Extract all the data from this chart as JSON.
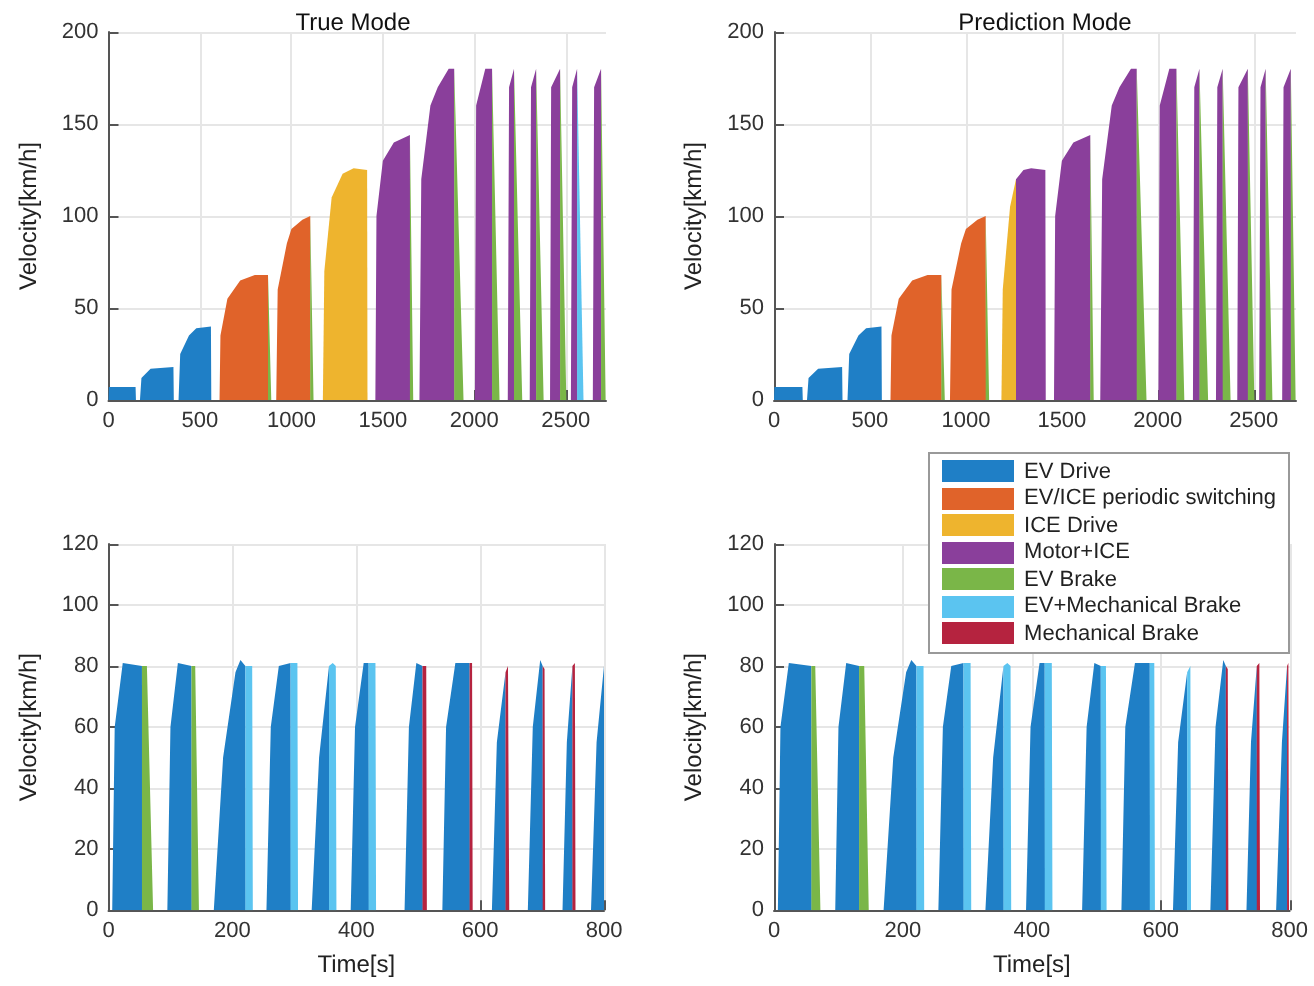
{
  "chart_data": [
    {
      "type": "area",
      "title": "True Mode",
      "ylabel": "Velocity[km/h]",
      "xlim": [
        0,
        2720
      ],
      "xticks": [
        0,
        500,
        1000,
        1500,
        2000,
        2500
      ],
      "ylim": [
        0,
        200
      ],
      "yticks": [
        0,
        50,
        100,
        150,
        200
      ],
      "grid": true,
      "legend": "bottom right",
      "series": [
        {
          "name": "EV Drive",
          "color": "#1f7fc6",
          "x": [
            0,
            2,
            148,
            150,
            160,
            172,
            180,
            230,
            355,
            357,
            370,
            383,
            392,
            440,
            480,
            560,
            562
          ],
          "values": [
            0,
            7,
            7,
            0,
            null,
            0,
            12,
            17,
            18,
            0,
            null,
            0,
            25,
            35,
            39,
            40,
            0
          ]
        },
        {
          "name": "EV/ICE periodic switching",
          "color": "#e0632a",
          "x": [
            607,
            612,
            650,
            720,
            800,
            872,
            874,
            895,
            917,
            925,
            975,
            1000,
            1060,
            1103,
            1105
          ],
          "values": [
            0,
            35,
            55,
            65,
            68,
            68,
            0,
            null,
            0,
            60,
            85,
            93,
            98,
            100,
            0
          ]
        },
        {
          "name": "ICE Drive",
          "color": "#eeb42e",
          "x": [
            1172,
            1180,
            1220,
            1280,
            1340,
            1414,
            1416
          ],
          "values": [
            0,
            70,
            110,
            123,
            126,
            125,
            0
          ]
        },
        {
          "name": "Motor+ICE",
          "color": "#8a3f9b",
          "x": [
            1459,
            1465,
            1500,
            1560,
            1648,
            1650,
            1680,
            1700,
            1710,
            1760,
            1800,
            1860,
            1890,
            1892,
            1950,
            2003,
            2010,
            2060,
            2097,
            2099,
            2150,
            2183,
            2190,
            2217,
            2219,
            2280,
            2303,
            2310,
            2338,
            2340,
            2400,
            2414,
            2420,
            2469,
            2471,
            2510,
            2528,
            2535,
            2562,
            2564,
            2630,
            2648,
            2655,
            2693,
            2695
          ],
          "values": [
            0,
            100,
            130,
            140,
            144,
            0,
            null,
            0,
            120,
            160,
            170,
            180,
            180,
            0,
            null,
            0,
            160,
            180,
            180,
            0,
            null,
            0,
            170,
            180,
            0,
            null,
            0,
            170,
            180,
            0,
            null,
            0,
            170,
            180,
            0,
            null,
            0,
            170,
            180,
            0,
            null,
            0,
            170,
            180,
            0
          ]
        },
        {
          "name": "EV Brake",
          "color": "#7ab648",
          "x": [
            872,
            890,
            895,
            1103,
            1121,
            1125,
            1648,
            1666,
            1670,
            1890,
            1941,
            1945,
            2097,
            2138,
            2140,
            2217,
            2262,
            2265,
            2338,
            2379,
            2385,
            2469,
            2503,
            2510,
            2693,
            2718
          ],
          "values": [
            68,
            0,
            null,
            100,
            0,
            null,
            144,
            0,
            null,
            180,
            0,
            null,
            180,
            0,
            null,
            180,
            0,
            null,
            180,
            0,
            null,
            180,
            0,
            null,
            180,
            0
          ]
        },
        {
          "name": "EV+Mechanical Brake",
          "color": "#5bc4f0",
          "x": [
            2562,
            2597
          ],
          "values": [
            180,
            0
          ]
        }
      ]
    },
    {
      "type": "area",
      "title": "Prediction Mode",
      "ylabel": "Velocity[km/h]",
      "xlim": [
        0,
        2720
      ],
      "xticks": [
        0,
        500,
        1000,
        1500,
        2000,
        2500
      ],
      "ylim": [
        0,
        200
      ],
      "yticks": [
        0,
        50,
        100,
        150,
        200
      ],
      "grid": true,
      "legend": "bottom",
      "series": [
        {
          "name": "EV Drive",
          "color": "#1f7fc6",
          "x": [
            0,
            2,
            148,
            150,
            160,
            172,
            180,
            230,
            355,
            357,
            370,
            383,
            392,
            440,
            480,
            560,
            562
          ],
          "values": [
            0,
            7,
            7,
            0,
            null,
            0,
            12,
            17,
            18,
            0,
            null,
            0,
            25,
            35,
            39,
            40,
            0
          ]
        },
        {
          "name": "EV/ICE periodic switching",
          "color": "#e0632a",
          "x": [
            607,
            612,
            650,
            720,
            800,
            872,
            874,
            895,
            917,
            925,
            975,
            1000,
            1060,
            1103,
            1105
          ],
          "values": [
            0,
            35,
            55,
            65,
            68,
            68,
            0,
            null,
            0,
            60,
            85,
            93,
            98,
            100,
            0
          ]
        },
        {
          "name": "ICE Drive",
          "color": "#eeb42e",
          "x": [
            1185,
            1192,
            1230,
            1261
          ],
          "values": [
            0,
            60,
            105,
            120
          ]
        },
        {
          "name": "Motor+ICE",
          "color": "#8a3f9b",
          "x": [
            1261,
            1300,
            1340,
            1414,
            1416,
            1440,
            1459,
            1465,
            1500,
            1560,
            1648,
            1650,
            1680,
            1700,
            1710,
            1760,
            1800,
            1860,
            1890,
            1892,
            1950,
            2003,
            2010,
            2060,
            2097,
            2099,
            2150,
            2183,
            2190,
            2217,
            2219,
            2280,
            2303,
            2310,
            2338,
            2340,
            2400,
            2414,
            2420,
            2469,
            2471,
            2510,
            2528,
            2535,
            2562,
            2564,
            2630,
            2648,
            2655,
            2693,
            2695
          ],
          "values": [
            120,
            125,
            126,
            125,
            0,
            null,
            0,
            100,
            130,
            140,
            144,
            0,
            null,
            0,
            120,
            160,
            170,
            180,
            180,
            0,
            null,
            0,
            160,
            180,
            180,
            0,
            null,
            0,
            170,
            180,
            0,
            null,
            0,
            170,
            180,
            0,
            null,
            0,
            170,
            180,
            0,
            null,
            0,
            170,
            180,
            0,
            null,
            0,
            170,
            180,
            0
          ]
        },
        {
          "name": "EV Brake",
          "color": "#7ab648",
          "x": [
            872,
            890,
            895,
            1103,
            1121,
            1125,
            1648,
            1666,
            1670,
            1890,
            1941,
            1945,
            2097,
            2138,
            2140,
            2217,
            2262,
            2265,
            2338,
            2379,
            2385,
            2469,
            2503,
            2510,
            2562,
            2597,
            2600,
            2693,
            2718
          ],
          "values": [
            68,
            0,
            null,
            100,
            0,
            null,
            144,
            0,
            null,
            180,
            0,
            null,
            180,
            0,
            null,
            180,
            0,
            null,
            180,
            0,
            null,
            180,
            0,
            null,
            180,
            0,
            null,
            180,
            0
          ]
        }
      ]
    },
    {
      "type": "area",
      "xlabel": "Time[s]",
      "ylabel": "Velocity[km/h]",
      "xlim": [
        0,
        800
      ],
      "xticks": [
        0,
        200,
        400,
        600,
        800
      ],
      "ylim": [
        0,
        120
      ],
      "yticks": [
        0,
        20,
        40,
        60,
        80,
        100,
        120
      ],
      "grid": true,
      "legend": "right",
      "series": [
        {
          "name": "EV Drive",
          "color": "#1f7fc6",
          "x": [
            6,
            10,
            23,
            54,
            54.5,
            80,
            95,
            100,
            112,
            134,
            134.5,
            150,
            170,
            185,
            205,
            213,
            221,
            221.5,
            240,
            255,
            262,
            275,
            294,
            294.5,
            310,
            328,
            340,
            356,
            356.5,
            380,
            391,
            398,
            412,
            420,
            420.5,
            450,
            478,
            485,
            497,
            507,
            507.5,
            520,
            539,
            545,
            560,
            583,
            583.5,
            600,
            619,
            627,
            641,
            641.5,
            660,
            677,
            685,
            697,
            701,
            701.5,
            720,
            733,
            740,
            749,
            749.5,
            770,
            779,
            788,
            800
          ],
          "values": [
            0,
            60,
            81,
            80,
            0,
            null,
            0,
            60,
            81,
            80,
            0,
            null,
            0,
            50,
            78,
            82,
            80,
            0,
            null,
            0,
            60,
            80,
            81,
            0,
            null,
            0,
            50,
            80,
            0,
            null,
            0,
            60,
            81,
            81,
            0,
            null,
            0,
            60,
            81,
            80,
            0,
            null,
            0,
            60,
            81,
            81,
            0,
            null,
            0,
            55,
            78,
            0,
            null,
            0,
            60,
            82,
            80,
            0,
            null,
            0,
            55,
            80,
            0,
            null,
            0,
            55,
            80
          ]
        },
        {
          "name": "EV Brake",
          "color": "#7ab648",
          "x": [
            54,
            62,
            72,
            90,
            134,
            140,
            146
          ],
          "values": [
            80,
            80,
            0,
            null,
            80,
            80,
            0
          ]
        },
        {
          "name": "EV+Mechanical Brake",
          "color": "#5bc4f0",
          "x": [
            221,
            232,
            233,
            250,
            294,
            305,
            306,
            320,
            356,
            362,
            367,
            368,
            380,
            420,
            431,
            432
          ],
          "values": [
            80,
            80,
            0,
            null,
            81,
            81,
            0,
            null,
            80,
            81,
            80,
            0,
            null,
            81,
            81,
            0
          ]
        },
        {
          "name": "Mechanical Brake",
          "color": "#b5233f",
          "x": [
            507,
            513,
            514,
            530,
            583,
            587,
            588,
            600,
            641,
            645,
            647,
            660,
            701,
            704,
            705,
            720,
            749,
            753,
            754
          ],
          "values": [
            80,
            80,
            0,
            null,
            81,
            81,
            0,
            null,
            78,
            80,
            0,
            null,
            80,
            79,
            0,
            null,
            80,
            81,
            0
          ]
        }
      ]
    },
    {
      "type": "area",
      "xlabel": "Time[s]",
      "ylabel": "Velocity[km/h]",
      "xlim": [
        0,
        800
      ],
      "xticks": [
        0,
        200,
        400,
        600,
        800
      ],
      "ylim": [
        0,
        120
      ],
      "yticks": [
        0,
        20,
        40,
        60,
        80,
        100,
        120
      ],
      "grid": true,
      "legend": "top right",
      "series": [
        {
          "name": "EV Drive",
          "color": "#1f7fc6",
          "x": [
            6,
            10,
            23,
            58,
            58.5,
            80,
            95,
            100,
            112,
            132,
            132.5,
            150,
            170,
            185,
            205,
            213,
            221,
            221.5,
            240,
            255,
            262,
            275,
            294,
            294.5,
            310,
            328,
            340,
            356,
            356.5,
            380,
            391,
            398,
            412,
            420,
            420.5,
            450,
            478,
            485,
            497,
            507,
            507.5,
            520,
            539,
            545,
            560,
            583,
            583.5,
            600,
            619,
            627,
            641,
            641.5,
            660,
            677,
            685,
            697,
            701,
            701.5,
            720,
            733,
            740,
            749,
            749.5,
            770,
            779,
            788,
            796,
            796.5
          ],
          "values": [
            0,
            60,
            81,
            80,
            0,
            null,
            0,
            60,
            81,
            80,
            0,
            null,
            0,
            50,
            78,
            82,
            80,
            0,
            null,
            0,
            60,
            80,
            81,
            0,
            null,
            0,
            50,
            80,
            0,
            null,
            0,
            60,
            81,
            81,
            0,
            null,
            0,
            60,
            81,
            80,
            0,
            null,
            0,
            60,
            81,
            81,
            0,
            null,
            0,
            55,
            78,
            0,
            null,
            0,
            60,
            82,
            80,
            0,
            null,
            0,
            55,
            80,
            0,
            null,
            0,
            55,
            80,
            0
          ]
        },
        {
          "name": "EV Brake",
          "color": "#7ab648",
          "x": [
            58,
            64,
            72,
            90,
            132,
            140,
            147
          ],
          "values": [
            80,
            80,
            0,
            null,
            80,
            80,
            0
          ]
        },
        {
          "name": "EV+Mechanical Brake",
          "color": "#5bc4f0",
          "x": [
            221,
            232,
            233,
            250,
            294,
            305,
            306,
            320,
            356,
            362,
            367,
            368,
            380,
            420,
            431,
            432,
            450,
            507,
            515,
            516,
            530,
            583,
            590,
            591,
            600,
            641,
            646,
            647
          ],
          "values": [
            80,
            80,
            0,
            null,
            81,
            81,
            0,
            null,
            80,
            81,
            80,
            0,
            null,
            81,
            81,
            0,
            null,
            80,
            80,
            0,
            null,
            81,
            81,
            0,
            null,
            78,
            80,
            0
          ]
        },
        {
          "name": "Mechanical Brake",
          "color": "#b5233f",
          "x": [
            701,
            704,
            705,
            720,
            749,
            753,
            754,
            770,
            796,
            798,
            799
          ],
          "values": [
            80,
            79,
            0,
            null,
            80,
            81,
            0,
            null,
            80,
            81,
            0
          ]
        }
      ]
    }
  ]
}
